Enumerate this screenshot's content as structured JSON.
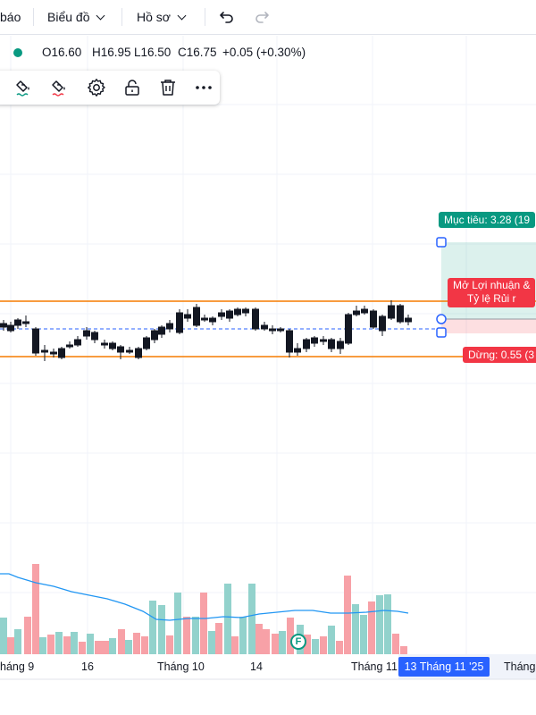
{
  "toolbar": {
    "alerts_label": "báo",
    "chart_label": "Biểu đồ",
    "profile_label": "Hồ sơ",
    "undo_icon": "undo-icon",
    "redo_icon": "redo-icon"
  },
  "ohlc": {
    "open": "O16.60",
    "high": "H16.95",
    "low": "L16.50",
    "close": "C16.75",
    "change": "+0.05 (+0.30%)",
    "status_color": "#089981"
  },
  "drawing_toolbar": {
    "tools": [
      "paint-bucket-icon",
      "paint-bucket-red-icon",
      "settings-icon",
      "unlock-icon",
      "trash-icon",
      "more-icon"
    ]
  },
  "position_tool": {
    "target_label": "Mục tiêu: 3.28 (19",
    "open_pnl_label": "Mở Lợi nhuận &",
    "risk_reward_label": "Tỷ lệ Rủi r",
    "stop_label": "Dừng: 0.55 (3",
    "target_color": "#089981",
    "stop_color": "#f23645"
  },
  "xaxis": {
    "labels": [
      "háng 9",
      "16",
      "Tháng 10",
      "14",
      "Tháng 11",
      "Tháng"
    ],
    "selected_date": "13 Tháng 11 '25"
  },
  "volume_badge": "F",
  "colors": {
    "up": "#089981",
    "down": "#f23645",
    "up_volume": "#92d2cc",
    "down_volume": "#f7a1a7",
    "ma_line": "#2196f3",
    "range_lines": "#f57c00"
  }
}
